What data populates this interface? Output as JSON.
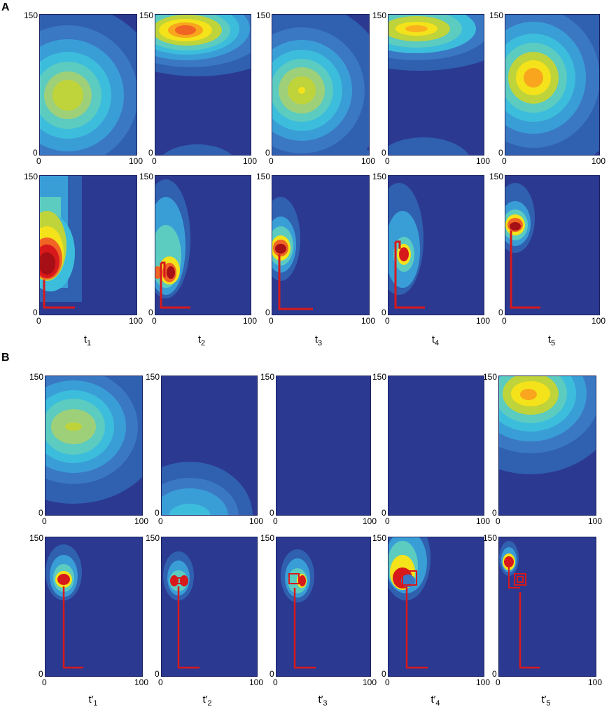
{
  "sections": [
    {
      "label": "A",
      "time_labels": [
        {
          "main": "t",
          "prime": "",
          "sub": "1"
        },
        {
          "main": "t",
          "prime": "",
          "sub": "2"
        },
        {
          "main": "t",
          "prime": "",
          "sub": "3"
        },
        {
          "main": "t",
          "prime": "",
          "sub": "4"
        },
        {
          "main": "t",
          "prime": "",
          "sub": "5"
        }
      ]
    },
    {
      "label": "B",
      "time_labels": [
        {
          "main": "t",
          "prime": "′",
          "sub": "1"
        },
        {
          "main": "t",
          "prime": "′",
          "sub": "2"
        },
        {
          "main": "t",
          "prime": "′",
          "sub": "3"
        },
        {
          "main": "t",
          "prime": "′",
          "sub": "4"
        },
        {
          "main": "t",
          "prime": "′",
          "sub": "5"
        }
      ]
    }
  ],
  "axis_ticks": {
    "x_min": "0",
    "x_max": "100",
    "y_min": "0",
    "y_max": "150"
  },
  "colors": {
    "background": "#2b3990",
    "path": "#d7191c",
    "path_marker": "#6ab04c"
  }
}
